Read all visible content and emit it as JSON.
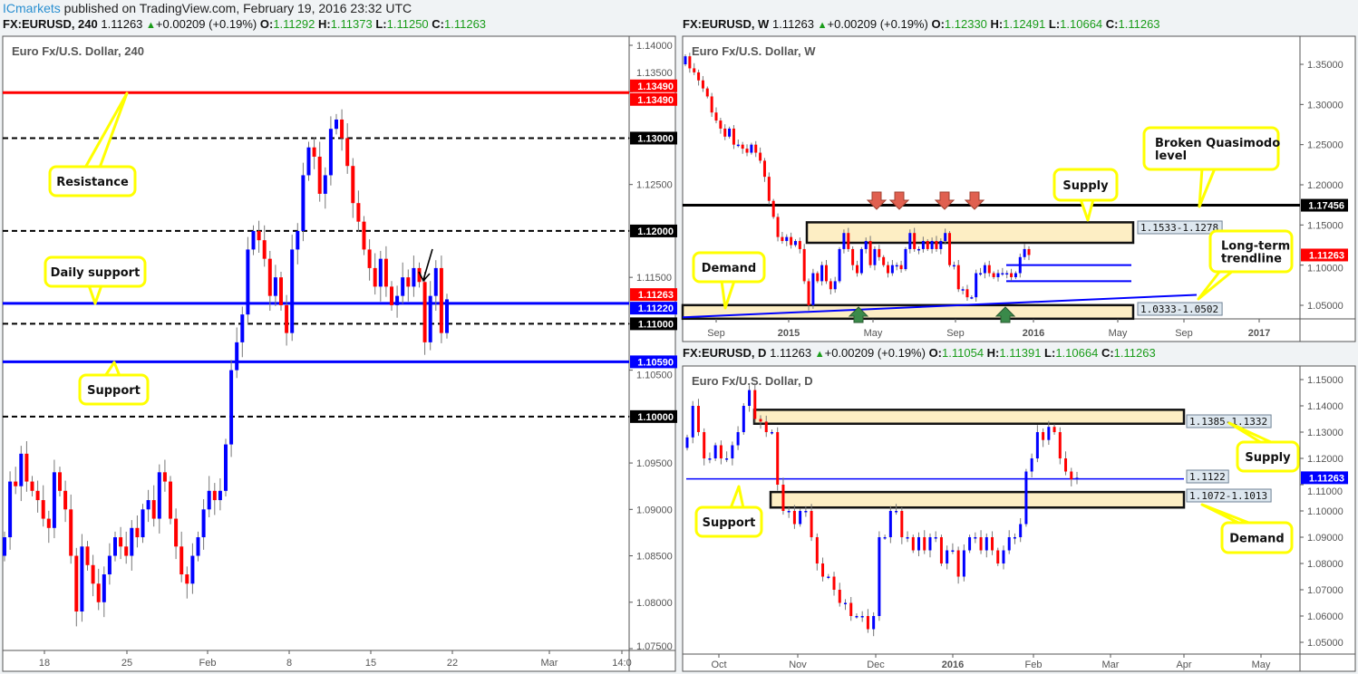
{
  "header": {
    "brand": "ICmarkets",
    "text": " published on TradingView.com, February 19, 2016 23:32 UTC"
  },
  "panels": [
    {
      "symbol": "FX:EURUSD, 240",
      "last": "1.11263",
      "change": "+0.00209 (+0.19%)",
      "o": "1.11292",
      "h": "1.11373",
      "l": "1.11250",
      "c": "1.11263"
    },
    {
      "symbol": "FX:EURUSD, W",
      "last": "1.11263",
      "change": "+0.00209 (+0.19%)",
      "o": "1.12330",
      "h": "1.12491",
      "l": "1.10664",
      "c": "1.11263"
    },
    {
      "symbol": "FX:EURUSD, D",
      "last": "1.11263",
      "change": "+0.00209 (+0.19%)",
      "o": "1.11054",
      "h": "1.11391",
      "l": "1.10664",
      "c": "1.11263"
    }
  ],
  "colors": {
    "up": "#0000ff",
    "down": "#ff0000",
    "callout_border": "#ffff00",
    "zone_fill": "#fdeec4",
    "green_arrow": "#3a8a4a",
    "red_arrow": "#e06050"
  },
  "chart_data": [
    {
      "type": "candlestick",
      "title": "Euro Fx/U.S. Dollar, 240",
      "ylim": [
        1.075,
        1.14
      ],
      "y_ticks": [
        "1.07500",
        "1.08000",
        "1.08500",
        "1.09000",
        "1.09500",
        "1.10000",
        "1.10500",
        "1.11000",
        "1.11500",
        "1.12000",
        "1.12500",
        "1.13000",
        "1.13500",
        "1.14000"
      ],
      "x_ticks": [
        "18",
        "25",
        "Feb",
        "8",
        "15",
        "22",
        "Mar",
        "14:0"
      ],
      "closes": [
        1.087,
        1.093,
        1.0925,
        1.096,
        1.093,
        1.092,
        1.091,
        1.089,
        1.088,
        1.094,
        1.092,
        1.09,
        1.085,
        1.079,
        1.086,
        1.084,
        1.082,
        1.08,
        1.083,
        1.085,
        1.087,
        1.086,
        1.085,
        1.088,
        1.087,
        1.09,
        1.091,
        1.089,
        1.094,
        1.093,
        1.089,
        1.086,
        1.083,
        1.082,
        1.085,
        1.087,
        1.09,
        1.092,
        1.091,
        1.092,
        1.097,
        1.105,
        1.108,
        1.111,
        1.118,
        1.12,
        1.119,
        1.117,
        1.113,
        1.115,
        1.112,
        1.109,
        1.118,
        1.12,
        1.126,
        1.129,
        1.128,
        1.124,
        1.126,
        1.131,
        1.132,
        1.13,
        1.127,
        1.123,
        1.121,
        1.118,
        1.116,
        1.114,
        1.117,
        1.114,
        1.112,
        1.113,
        1.115,
        1.114,
        1.116,
        1.1145,
        1.108,
        1.113,
        1.116,
        1.109,
        1.11263
      ],
      "levels": [
        {
          "price": 1.1349,
          "style": "solid",
          "color": "#ff0000",
          "badge": "1.13490"
        },
        {
          "price": 1.13,
          "style": "dashed",
          "color": "#000000",
          "badge": "1.13000"
        },
        {
          "price": 1.12,
          "style": "dashed",
          "color": "#000000",
          "badge": "1.12000"
        },
        {
          "price": 1.1122,
          "style": "solid",
          "color": "#0000ff",
          "badge": "1.11220"
        },
        {
          "price": 1.11,
          "style": "dashed",
          "color": "#000000",
          "badge": "1.11000"
        },
        {
          "price": 1.1059,
          "style": "solid",
          "color": "#0000ff",
          "badge": "1.10590"
        },
        {
          "price": 1.1,
          "style": "dashed",
          "color": "#000000",
          "badge": "1.10000"
        }
      ],
      "last_badge": {
        "price": 1.11263,
        "text": "1.11263",
        "color": "#ff0000"
      },
      "extra_badge": {
        "price": 1.1349,
        "text": "1.13490",
        "color": "#ff0000"
      },
      "annotations": [
        "Resistance",
        "Daily support",
        "Support"
      ]
    },
    {
      "type": "candlestick",
      "title": "Euro Fx/U.S. Dollar, W",
      "ylim": [
        1.05,
        1.35
      ],
      "y_ticks": [
        "1.05000",
        "1.10000",
        "1.15000",
        "1.20000",
        "1.25000",
        "1.30000",
        "1.35000"
      ],
      "x_ticks": [
        "Sep",
        "2015",
        "May",
        "Sep",
        "2016",
        "May",
        "Sep",
        "2017"
      ],
      "closes": [
        1.36,
        1.345,
        1.34,
        1.33,
        1.32,
        1.31,
        1.29,
        1.28,
        1.27,
        1.26,
        1.27,
        1.25,
        1.25,
        1.245,
        1.24,
        1.25,
        1.24,
        1.23,
        1.21,
        1.18,
        1.16,
        1.135,
        1.13,
        1.135,
        1.125,
        1.13,
        1.12,
        1.08,
        1.05,
        1.09,
        1.08,
        1.1,
        1.08,
        1.07,
        1.08,
        1.12,
        1.14,
        1.12,
        1.1,
        1.09,
        1.12,
        1.13,
        1.1,
        1.12,
        1.11,
        1.1,
        1.09,
        1.1,
        1.1,
        1.095,
        1.12,
        1.14,
        1.12,
        1.12,
        1.13,
        1.12,
        1.13,
        1.12,
        1.13,
        1.14,
        1.1,
        1.1,
        1.07,
        1.07,
        1.06,
        1.06,
        1.09,
        1.09,
        1.1,
        1.09,
        1.085,
        1.09,
        1.09,
        1.09,
        1.085,
        1.09,
        1.11,
        1.12,
        1.11263
      ],
      "levels": [
        {
          "price": 1.17456,
          "style": "solid",
          "color": "#000000",
          "badge": "1.17456"
        }
      ],
      "zones": [
        {
          "label": "1.1533-1.1278",
          "top": 1.1533,
          "bottom": 1.1278
        },
        {
          "label": "1.0333-1.0502",
          "top": 1.0502,
          "bottom": 1.0333
        }
      ],
      "trendline": [
        1.035,
        1.063
      ],
      "last_badge": {
        "price": 1.11263,
        "text": "1.11263",
        "color": "#ff0000"
      },
      "annotations": [
        "Supply",
        "Broken Quasimodo level",
        "Long-term trendline",
        "Demand"
      ]
    },
    {
      "type": "candlestick",
      "title": "Euro Fx/U.S. Dollar, D",
      "ylim": [
        1.05,
        1.15
      ],
      "y_ticks": [
        "1.05000",
        "1.06000",
        "1.07000",
        "1.08000",
        "1.09000",
        "1.10000",
        "1.11000",
        "1.12000",
        "1.13000",
        "1.14000",
        "1.15000"
      ],
      "x_ticks": [
        "Oct",
        "Nov",
        "Dec",
        "2016",
        "Feb",
        "Mar",
        "Apr",
        "May"
      ],
      "closes": [
        1.128,
        1.14,
        1.13,
        1.12,
        1.12,
        1.125,
        1.12,
        1.12,
        1.125,
        1.13,
        1.14,
        1.146,
        1.135,
        1.134,
        1.13,
        1.13,
        1.11,
        1.1,
        1.1,
        1.095,
        1.1,
        1.1,
        1.09,
        1.08,
        1.075,
        1.075,
        1.07,
        1.065,
        1.065,
        1.06,
        1.06,
        1.06,
        1.055,
        1.06,
        1.09,
        1.09,
        1.1,
        1.1,
        1.09,
        1.09,
        1.085,
        1.09,
        1.085,
        1.09,
        1.09,
        1.08,
        1.085,
        1.085,
        1.075,
        1.085,
        1.09,
        1.09,
        1.085,
        1.09,
        1.085,
        1.08,
        1.085,
        1.09,
        1.09,
        1.095,
        1.115,
        1.12,
        1.13,
        1.127,
        1.132,
        1.13,
        1.12,
        1.115,
        1.112,
        1.11263
      ],
      "levels": [
        {
          "price": 1.1122,
          "style": "solid",
          "color": "#0000ff",
          "label": "1.1122"
        }
      ],
      "zones": [
        {
          "label": "1.1385-1.1332",
          "top": 1.1385,
          "bottom": 1.1332
        },
        {
          "label": "1.1072-1.1013",
          "top": 1.1072,
          "bottom": 1.1013
        }
      ],
      "last_badge": {
        "price": 1.11263,
        "text": "1.11263",
        "color": "#0000ff"
      },
      "annotations": [
        "Supply",
        "Demand",
        "Support"
      ]
    }
  ]
}
